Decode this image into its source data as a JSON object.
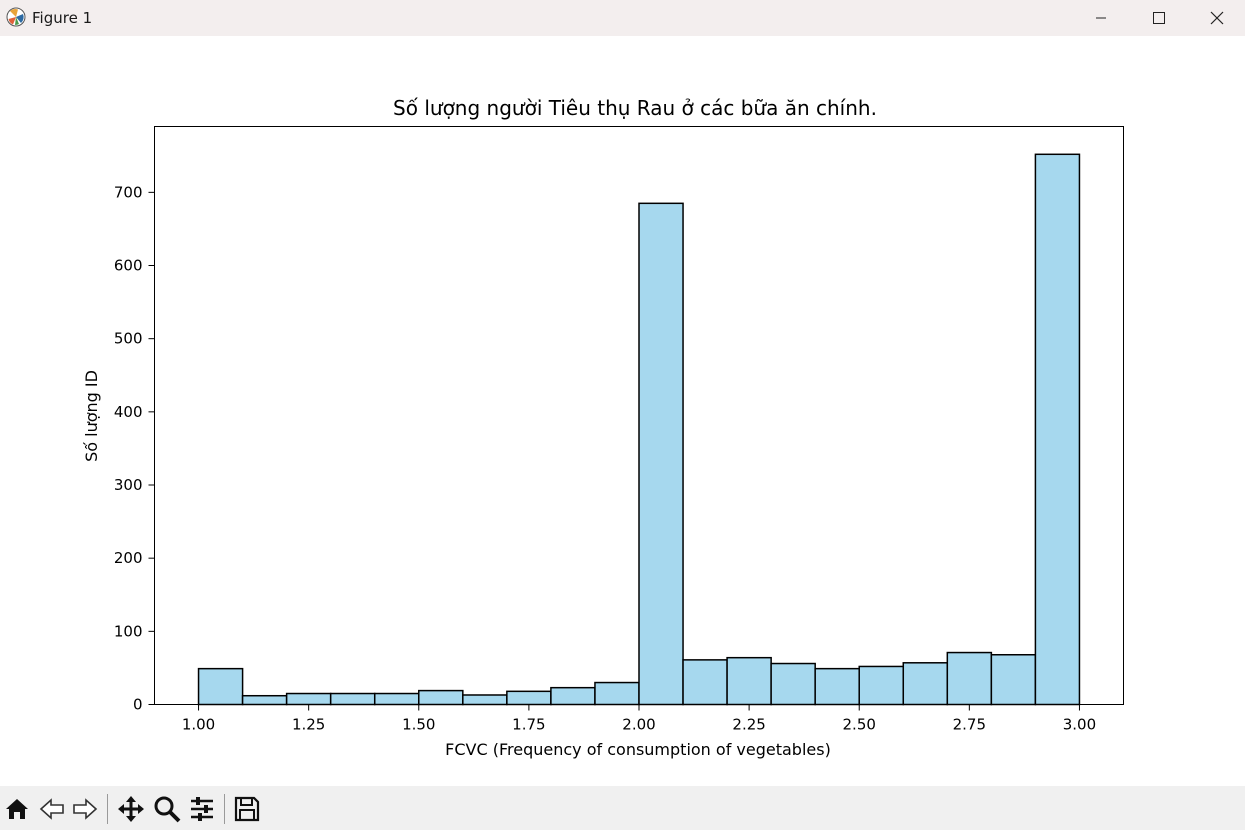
{
  "window": {
    "title": "Figure 1",
    "controls": {
      "minimize_icon": "minimize-icon",
      "maximize_icon": "maximize-icon",
      "close_icon": "close-icon"
    }
  },
  "toolbar": {
    "buttons": [
      "home-icon",
      "back-arrow-icon",
      "forward-arrow-icon",
      "pan-icon",
      "zoom-icon",
      "configure-subplots-icon",
      "save-icon"
    ]
  },
  "chart_data": {
    "type": "bar",
    "title": "Số lượng người Tiêu thụ Rau ở các bữa ăn chính.",
    "xlabel": "FCVC (Frequency of consumption of vegetables)",
    "ylabel": "Số lượng ID",
    "bin_edges": [
      1.0,
      1.1,
      1.2,
      1.3,
      1.4,
      1.5,
      1.6,
      1.7,
      1.8,
      1.9,
      2.0,
      2.1,
      2.2,
      2.3,
      2.4,
      2.5,
      2.6,
      2.7,
      2.8,
      2.9,
      3.0
    ],
    "values": [
      49,
      12,
      15,
      15,
      15,
      19,
      13,
      18,
      23,
      30,
      685,
      61,
      64,
      56,
      49,
      52,
      57,
      71,
      68,
      752
    ],
    "xlim": [
      0.9,
      3.1
    ],
    "ylim": [
      0,
      790
    ],
    "x_ticks": [
      "1.00",
      "1.25",
      "1.50",
      "1.75",
      "2.00",
      "2.25",
      "2.50",
      "2.75",
      "3.00"
    ],
    "y_ticks": [
      "0",
      "100",
      "200",
      "300",
      "400",
      "500",
      "600",
      "700"
    ],
    "bar_color": "#a6d8ee",
    "edge_color": "#000000",
    "grid": false
  }
}
